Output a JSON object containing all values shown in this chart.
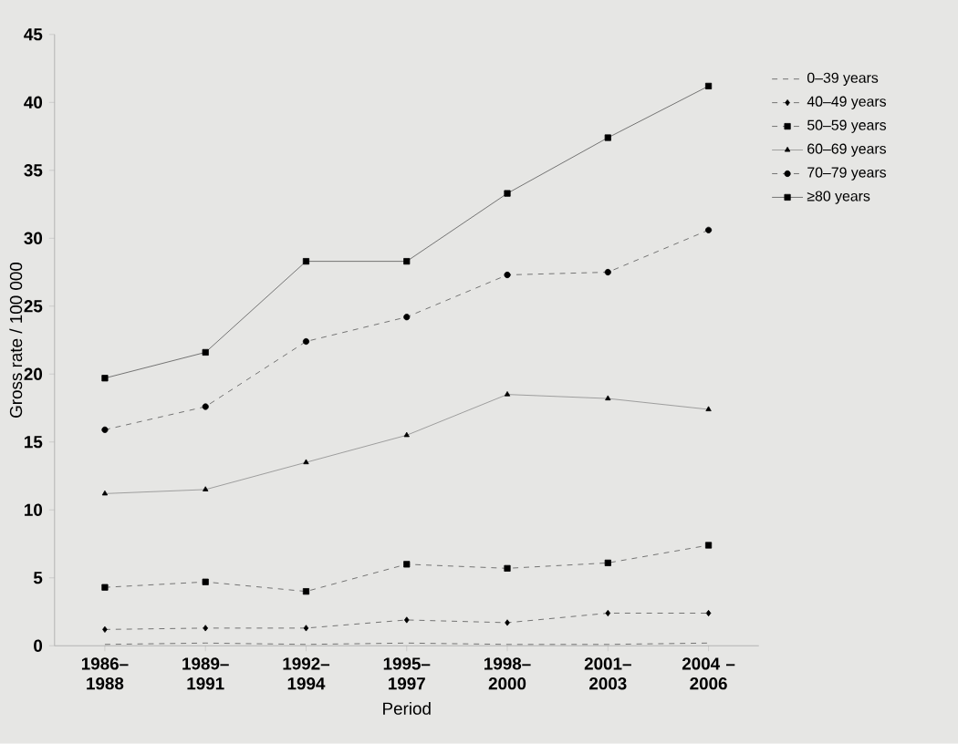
{
  "chart_data": {
    "type": "line",
    "xlabel": "Period",
    "ylabel": "Gross rate / 100 000",
    "categories": [
      "1986– 1988",
      "1989– 1991",
      "1992– 1994",
      "1995– 1997",
      "1998– 2000",
      "2001– 2003",
      "2004 – 2006"
    ],
    "ylim": [
      0,
      45
    ],
    "yticks": [
      0,
      5,
      10,
      15,
      20,
      25,
      30,
      35,
      40,
      45
    ],
    "grid": false,
    "legend": "top right",
    "series": [
      {
        "name": "0–39 years",
        "color": "#555555",
        "line_style": "dashed",
        "marker": "none",
        "values": [
          0.1,
          0.2,
          0.1,
          0.2,
          0.1,
          0.1,
          0.2
        ]
      },
      {
        "name": "40–49 years",
        "color": "#555555",
        "line_style": "dashed",
        "marker": "diamond",
        "values": [
          1.2,
          1.3,
          1.3,
          1.9,
          1.7,
          2.4,
          2.4
        ]
      },
      {
        "name": "50–59 years",
        "color": "#555555",
        "line_style": "dashed",
        "marker": "square",
        "values": [
          4.3,
          4.7,
          4.0,
          6.0,
          5.7,
          6.1,
          7.4
        ]
      },
      {
        "name": "60–69 years",
        "color": "#8a8a8a",
        "line_style": "solid",
        "marker": "triangle",
        "values": [
          11.2,
          11.5,
          13.5,
          15.5,
          18.5,
          18.2,
          17.4
        ]
      },
      {
        "name": "70–79 years",
        "color": "#555555",
        "line_style": "dashed",
        "marker": "circle",
        "values": [
          15.9,
          17.6,
          22.4,
          24.2,
          27.3,
          27.5,
          30.6
        ]
      },
      {
        "name": "≥80 years",
        "color": "#555555",
        "line_style": "solid",
        "marker": "square",
        "values": [
          19.7,
          21.6,
          28.3,
          28.3,
          33.3,
          37.4,
          41.2
        ]
      }
    ]
  }
}
